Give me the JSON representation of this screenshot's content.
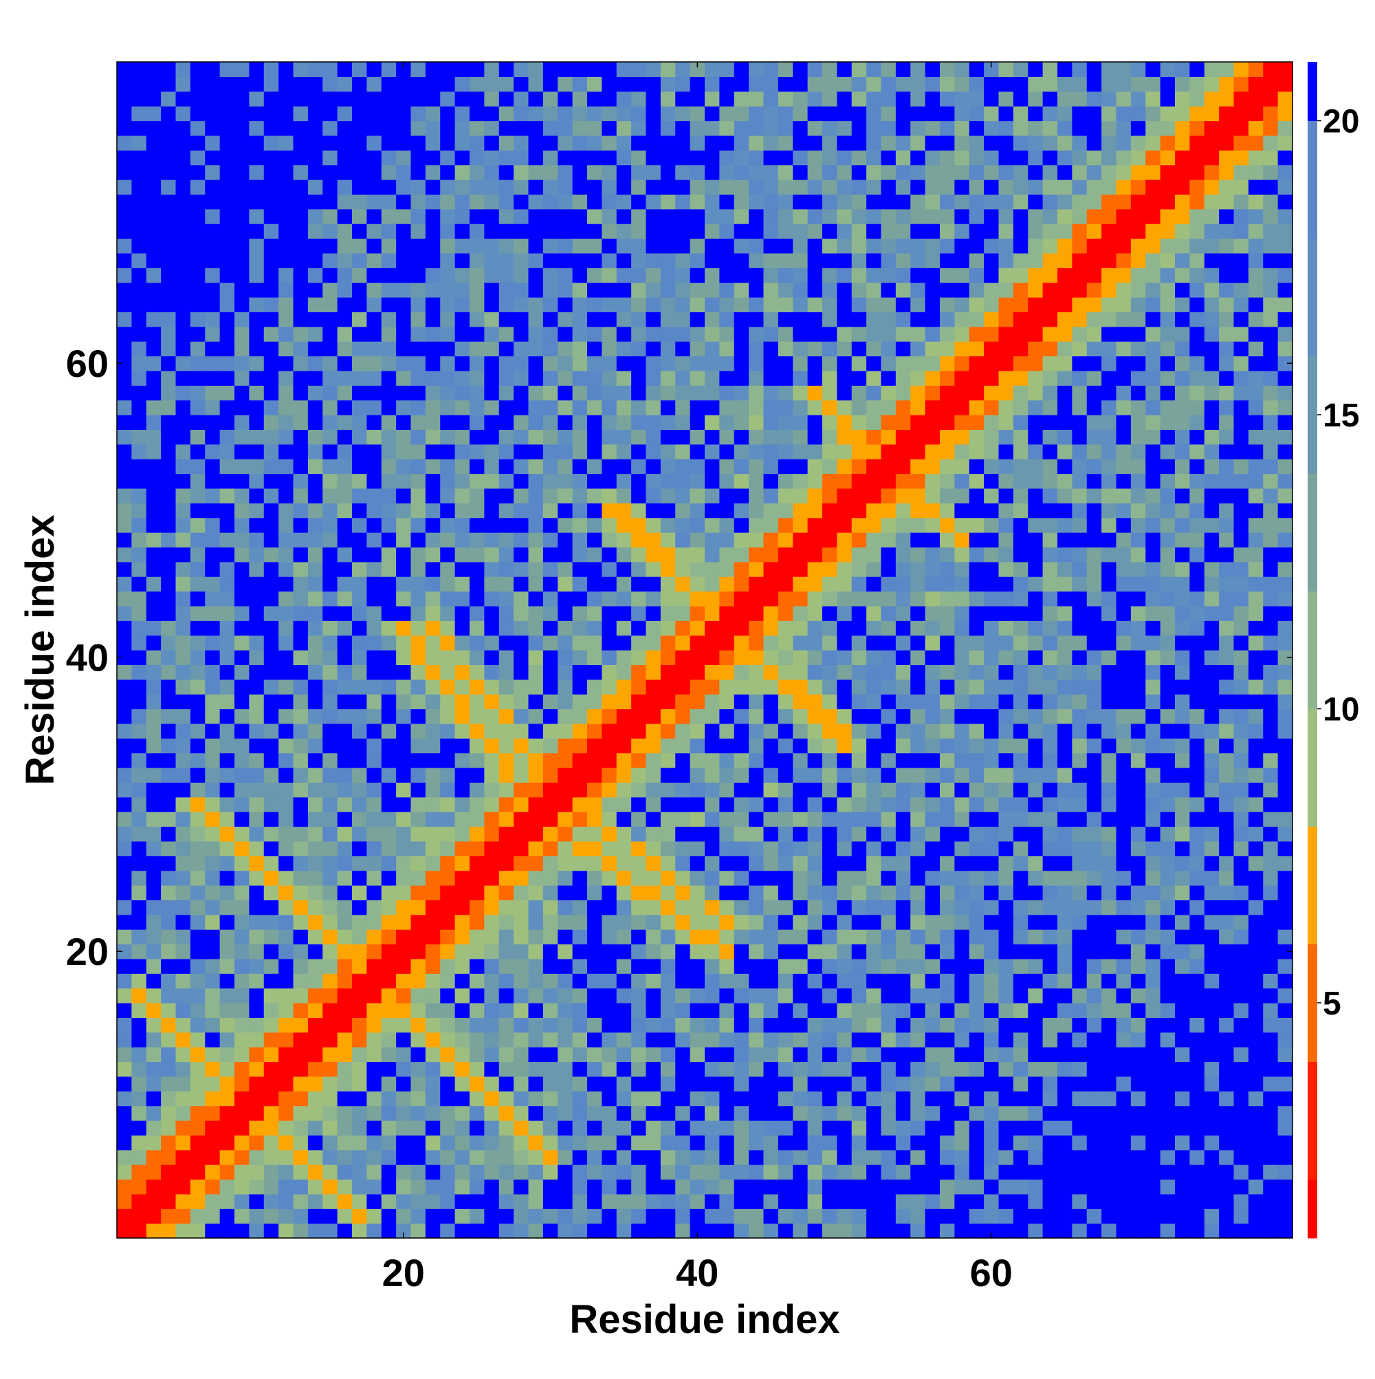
{
  "chart_data": {
    "type": "heatmap",
    "title": "",
    "xlabel": "Residue index",
    "ylabel": "Residue index",
    "n_residues": 80,
    "xlim": [
      1,
      80
    ],
    "ylim": [
      1,
      80
    ],
    "x_ticks": [
      20,
      40,
      60
    ],
    "y_ticks": [
      20,
      40,
      60
    ],
    "colorbar": {
      "ticks": [
        5,
        10,
        15,
        20
      ],
      "range": [
        1,
        21
      ]
    },
    "color_bins": [
      {
        "min": 0,
        "max": 2,
        "color": "#ff0000"
      },
      {
        "min": 2,
        "max": 4,
        "color": "#ff2000"
      },
      {
        "min": 4,
        "max": 6,
        "color": "#ff6a00"
      },
      {
        "min": 6,
        "max": 8,
        "color": "#ffa500"
      },
      {
        "min": 8,
        "max": 10,
        "color": "#9fbf7f"
      },
      {
        "min": 10,
        "max": 12,
        "color": "#8fb58f"
      },
      {
        "min": 12,
        "max": 14,
        "color": "#7aa39c"
      },
      {
        "min": 14,
        "max": 16,
        "color": "#6a98ae"
      },
      {
        "min": 16,
        "max": 18,
        "color": "#5f8fc0"
      },
      {
        "min": 18,
        "max": 20,
        "color": "#5a87c8"
      },
      {
        "min": 20,
        "max": 99,
        "color": "#0000ff"
      }
    ],
    "structure": {
      "helical_diagonal": [
        {
          "start": 1,
          "end": 80
        }
      ],
      "antiparallel_contacts": [
        {
          "a_start": 2,
          "a_end": 17,
          "b_start": 17,
          "b_end": 2,
          "value": 6.5
        },
        {
          "a_start": 7,
          "a_end": 19,
          "b_start": 29,
          "b_end": 17,
          "value": 6.5
        },
        {
          "a_start": 20,
          "a_end": 30,
          "b_start": 16,
          "b_end": 6,
          "value": 6.5
        },
        {
          "a_start": 22,
          "a_end": 30,
          "b_start": 42,
          "b_end": 32,
          "value": 6.5
        },
        {
          "a_start": 30,
          "a_end": 42,
          "b_start": 29,
          "b_end": 20,
          "value": 6.5
        },
        {
          "a_start": 34,
          "a_end": 42,
          "b_start": 50,
          "b_end": 42,
          "value": 6.5
        },
        {
          "a_start": 42,
          "a_end": 50,
          "b_start": 42,
          "b_end": 35,
          "value": 6.5
        },
        {
          "a_start": 50,
          "a_end": 58,
          "b_start": 55,
          "b_end": 48,
          "value": 6.5
        }
      ],
      "far_region_value": 22,
      "mid_region_value": 16
    }
  }
}
